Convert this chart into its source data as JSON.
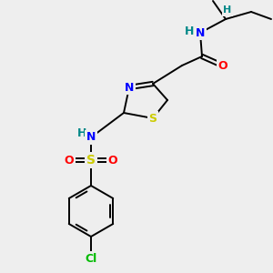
{
  "bg_color": "#eeeeee",
  "atom_colors": {
    "C": "#000000",
    "N": "#0000ff",
    "O": "#ff0000",
    "S": "#cccc00",
    "Cl": "#00bb00",
    "H": "#008888"
  },
  "bond_color": "#000000",
  "lw": 1.4
}
